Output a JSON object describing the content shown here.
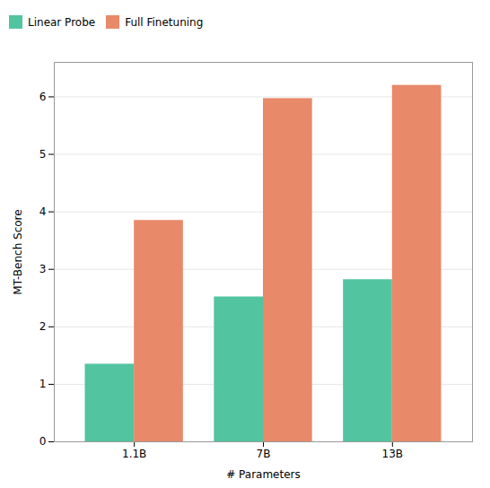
{
  "chart_data": {
    "type": "bar",
    "categories": [
      "1.1B",
      "7B",
      "13B"
    ],
    "series": [
      {
        "name": "Linear Probe",
        "color": "#52c4a0",
        "values": [
          1.35,
          2.52,
          2.82
        ]
      },
      {
        "name": "Full Finetuning",
        "color": "#e8896a",
        "values": [
          3.85,
          5.97,
          6.2
        ]
      }
    ],
    "xlabel": "# Parameters",
    "ylabel": "MT-Bench Score",
    "ylim": [
      0,
      6.6
    ],
    "yticks": [
      0,
      1,
      2,
      3,
      4,
      5,
      6
    ],
    "grid": true,
    "legend": "upper left"
  }
}
